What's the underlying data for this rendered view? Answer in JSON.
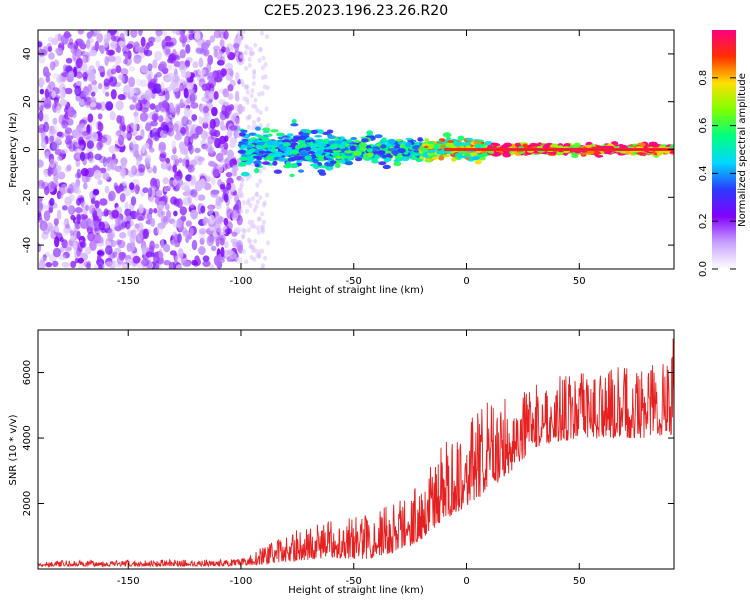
{
  "title": "C2E5.2023.196.23.26.R20",
  "chart_data": [
    {
      "type": "heatmap",
      "xlabel": "Height of straight line (km)",
      "ylabel": "Frequency (Hz)",
      "xlim": [
        -190,
        92
      ],
      "ylim": [
        -50,
        50
      ],
      "x_ticks": [
        -150,
        -100,
        -50,
        0,
        50
      ],
      "y_ticks": [
        -40,
        -20,
        0,
        20,
        40
      ],
      "colorbar": {
        "label": "Normalized spectral amplitude",
        "range": [
          0,
          1
        ],
        "ticks": [
          0.0,
          0.2,
          0.4,
          0.6,
          0.8
        ],
        "colormap": [
          "#ffffff",
          "#c8a0ff",
          "#8000ff",
          "#2a3cff",
          "#00d8ff",
          "#00ff80",
          "#80ff00",
          "#ffe000",
          "#ff3000",
          "#ff0080"
        ]
      },
      "regions": [
        {
          "x": [
            -190,
            -100
          ],
          "freq_spread": 50,
          "amplitude": 0.15,
          "description_level": "noise"
        },
        {
          "x": [
            -100,
            -60
          ],
          "freq_spread": 6,
          "amplitude": 0.45
        },
        {
          "x": [
            -60,
            -20
          ],
          "freq_spread": 4,
          "amplitude": 0.5
        },
        {
          "x": [
            -20,
            10
          ],
          "freq_spread": 3,
          "amplitude": 0.7
        },
        {
          "x": [
            10,
            92
          ],
          "freq_spread": 1.5,
          "amplitude": 0.95
        }
      ]
    },
    {
      "type": "line",
      "xlabel": "Height of straight line (km)",
      "ylabel": "SNR (10 * v/v)",
      "xlim": [
        -190,
        92
      ],
      "ylim": [
        0,
        7300
      ],
      "x_ticks": [
        -150,
        -100,
        -50,
        0,
        50
      ],
      "y_ticks": [
        2000,
        4000,
        6000
      ],
      "color": "#e62020",
      "envelope": {
        "x": [
          -190,
          -100,
          -90,
          -75,
          -60,
          -45,
          -30,
          -20,
          -10,
          0,
          10,
          20,
          30,
          40,
          60,
          80,
          92
        ],
        "base": [
          80,
          90,
          150,
          250,
          350,
          300,
          500,
          900,
          1500,
          1900,
          2400,
          3000,
          3700,
          3900,
          4000,
          4000,
          4100
        ],
        "peak": [
          250,
          300,
          700,
          1200,
          1500,
          1700,
          2200,
          2700,
          3900,
          4500,
          5200,
          5300,
          5600,
          5900,
          6100,
          6300,
          7200
        ]
      }
    }
  ]
}
